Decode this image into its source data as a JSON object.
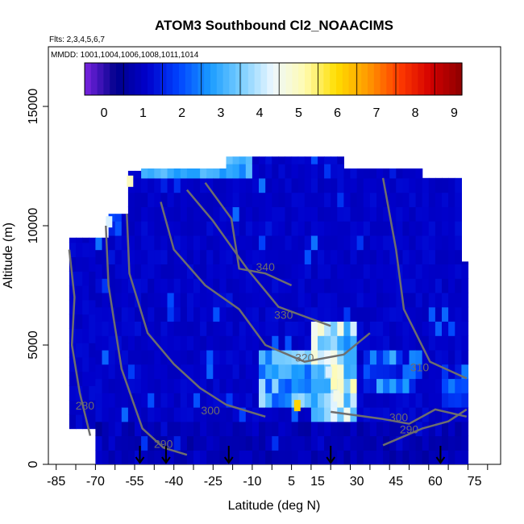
{
  "chart_data": {
    "type": "heatmap",
    "title": "ATOM3 Southbound Cl2_NOAACIMS",
    "subtitle_flights": "Flts: 2,3,4,5,6,7",
    "subtitle_dates": "MMDD: 1001,1004,1006,1008,1011,1014",
    "xlabel": "Latitude (deg N)",
    "ylabel": "Altitude (m)",
    "xlim": [
      -88,
      85
    ],
    "ylim": [
      0,
      17500
    ],
    "x_ticks": [
      -85,
      -70,
      -55,
      -40,
      -25,
      -10,
      5,
      15,
      30,
      45,
      60,
      75
    ],
    "y_ticks": [
      0,
      5000,
      10000,
      15000
    ],
    "colorbar": {
      "ticks": [
        0,
        1,
        2,
        3,
        4,
        5,
        6,
        7,
        8,
        9
      ],
      "range": [
        -0.5,
        9.2
      ],
      "colors": [
        "#7a24e0",
        "#00008c",
        "#0000cc",
        "#0044ff",
        "#1a9cff",
        "#7ccfff",
        "#eef8ff",
        "#fffbb0",
        "#ffde00",
        "#ff9a00",
        "#ff3c00",
        "#d40000",
        "#8c0000"
      ]
    },
    "contours": [
      {
        "label": "280",
        "points": [
          [
            -80,
            9000
          ],
          [
            -78,
            7000
          ],
          [
            -79,
            5000
          ],
          [
            -76,
            3000
          ],
          [
            -72,
            1200
          ]
        ]
      },
      {
        "label": "290",
        "points": [
          [
            -66,
            10000
          ],
          [
            -65,
            7500
          ],
          [
            -60,
            4000
          ],
          [
            -52,
            1500
          ],
          [
            -44,
            700
          ],
          [
            -35,
            400
          ]
        ]
      },
      {
        "label": "300",
        "points": [
          [
            -58,
            10500
          ],
          [
            -57,
            8000
          ],
          [
            -50,
            5500
          ],
          [
            -40,
            4200
          ],
          [
            -30,
            3200
          ],
          [
            -20,
            2500
          ],
          [
            -5,
            2000
          ]
        ]
      },
      {
        "label": "320",
        "points": [
          [
            -45,
            11000
          ],
          [
            -40,
            9000
          ],
          [
            -28,
            7500
          ],
          [
            -15,
            6500
          ],
          [
            -5,
            5000
          ],
          [
            10,
            4300
          ],
          [
            25,
            4600
          ],
          [
            35,
            5500
          ]
        ]
      },
      {
        "label": "330",
        "points": [
          [
            -35,
            11500
          ],
          [
            -25,
            10200
          ],
          [
            -12,
            8200
          ],
          [
            0,
            6600
          ],
          [
            10,
            6200
          ],
          [
            20,
            5800
          ]
        ]
      },
      {
        "label": "340",
        "points": [
          [
            -28,
            11800
          ],
          [
            -18,
            10300
          ],
          [
            -15,
            8200
          ],
          [
            -5,
            8000
          ],
          [
            5,
            7500
          ]
        ]
      },
      {
        "label": "310",
        "points": [
          [
            40,
            12000
          ],
          [
            45,
            9000
          ],
          [
            48,
            6500
          ],
          [
            58,
            4300
          ],
          [
            72,
            3600
          ]
        ]
      },
      {
        "label": "300",
        "points": [
          [
            20,
            2200
          ],
          [
            40,
            1900
          ],
          [
            50,
            1700
          ],
          [
            60,
            2300
          ],
          [
            72,
            2000
          ]
        ]
      },
      {
        "label": "290",
        "points": [
          [
            40,
            800
          ],
          [
            55,
            1500
          ],
          [
            65,
            1800
          ],
          [
            72,
            2300
          ]
        ]
      }
    ],
    "contour_labels": [
      {
        "label": "340",
        "lat": -5,
        "alt": 8100
      },
      {
        "label": "330",
        "lat": 2,
        "alt": 6100
      },
      {
        "label": "320",
        "lat": 10,
        "alt": 4300
      },
      {
        "label": "310",
        "lat": 54,
        "alt": 3900
      },
      {
        "label": "300",
        "lat": -26,
        "alt": 2100
      },
      {
        "label": "300",
        "lat": 46,
        "alt": 1800
      },
      {
        "label": "290",
        "lat": -44,
        "alt": 700
      },
      {
        "label": "290",
        "lat": 50,
        "alt": 1300
      },
      {
        "label": "280",
        "lat": -74,
        "alt": 2300
      }
    ],
    "flight_markers_lat": [
      -53,
      -43,
      -19,
      20,
      62
    ]
  }
}
